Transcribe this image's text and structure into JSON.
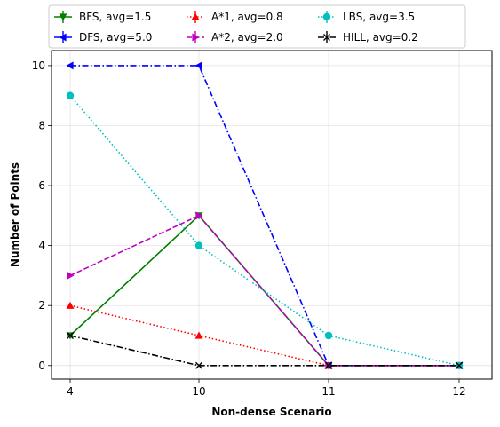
{
  "chart_data": {
    "type": "line",
    "title": "",
    "xlabel": "Non-dense Scenario",
    "ylabel": "Number of Points",
    "categories": [
      "4",
      "10",
      "11",
      "12"
    ],
    "ylim": [
      -0.45,
      10.5
    ],
    "yticks": [
      0,
      2,
      4,
      6,
      8,
      10
    ],
    "grid": true,
    "legend_position": "top",
    "series": [
      {
        "name": "BFS, avg=1.5",
        "values": [
          1,
          5,
          0,
          0
        ],
        "color": "#008000",
        "marker": "triangle-down",
        "dash": "solid"
      },
      {
        "name": "DFS, avg=5.0",
        "values": [
          10,
          10,
          0,
          0
        ],
        "color": "#0000ff",
        "marker": "triangle-left",
        "dash": "dashdot"
      },
      {
        "name": "A*1, avg=0.8",
        "values": [
          2,
          1,
          0,
          0
        ],
        "color": "#ff0000",
        "marker": "triangle-up",
        "dash": "dotted"
      },
      {
        "name": "A*2, avg=2.0",
        "values": [
          3,
          5,
          0,
          0
        ],
        "color": "#bf00bf",
        "marker": "triangle-right",
        "dash": "dashed"
      },
      {
        "name": "LBS, avg=3.5",
        "values": [
          9,
          4,
          1,
          0
        ],
        "color": "#00bfbf",
        "marker": "circle",
        "dash": "dotted"
      },
      {
        "name": "HILL, avg=0.2",
        "values": [
          1,
          0,
          0,
          0
        ],
        "color": "#000000",
        "marker": "x",
        "dash": "dashdot"
      }
    ]
  }
}
